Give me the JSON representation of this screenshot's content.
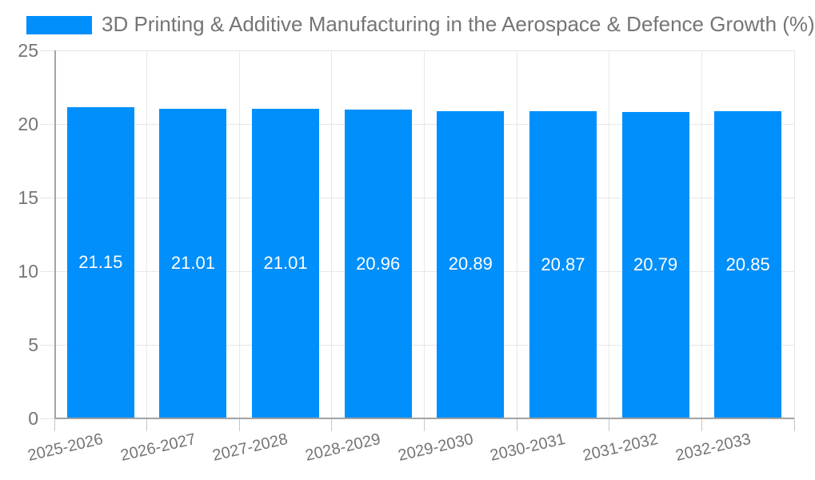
{
  "chart_data": {
    "type": "bar",
    "title": "3D Printing & Additive Manufacturing in the Aerospace & Defence Growth (%)",
    "categories": [
      "2025-2026",
      "2026-2027",
      "2027-2028",
      "2028-2029",
      "2029-2030",
      "2030-2031",
      "2031-2032",
      "2032-2033"
    ],
    "values": [
      21.15,
      21.01,
      21.01,
      20.96,
      20.89,
      20.87,
      20.79,
      20.85
    ],
    "value_labels": [
      "21.15",
      "21.01",
      "21.01",
      "20.96",
      "20.89",
      "20.87",
      "20.79",
      "20.85"
    ],
    "xlabel": "",
    "ylabel": "",
    "ylim": [
      0,
      25
    ],
    "yticks": [
      0,
      5,
      10,
      15,
      20,
      25
    ],
    "ytick_labels": [
      "0",
      "5",
      "10",
      "15",
      "20",
      "25"
    ],
    "grid": true,
    "legend_position": "top-left",
    "value_label_position": "inside-center"
  },
  "colors": {
    "bar": "#008ffb",
    "title_text": "#757575",
    "tick_text": "#757575",
    "value_label_text": "#ffffff",
    "grid_line": "#e7e7e7",
    "axis_line": "#a3a3a3",
    "tick_mark": "#c6c6c6",
    "background": "#ffffff"
  }
}
